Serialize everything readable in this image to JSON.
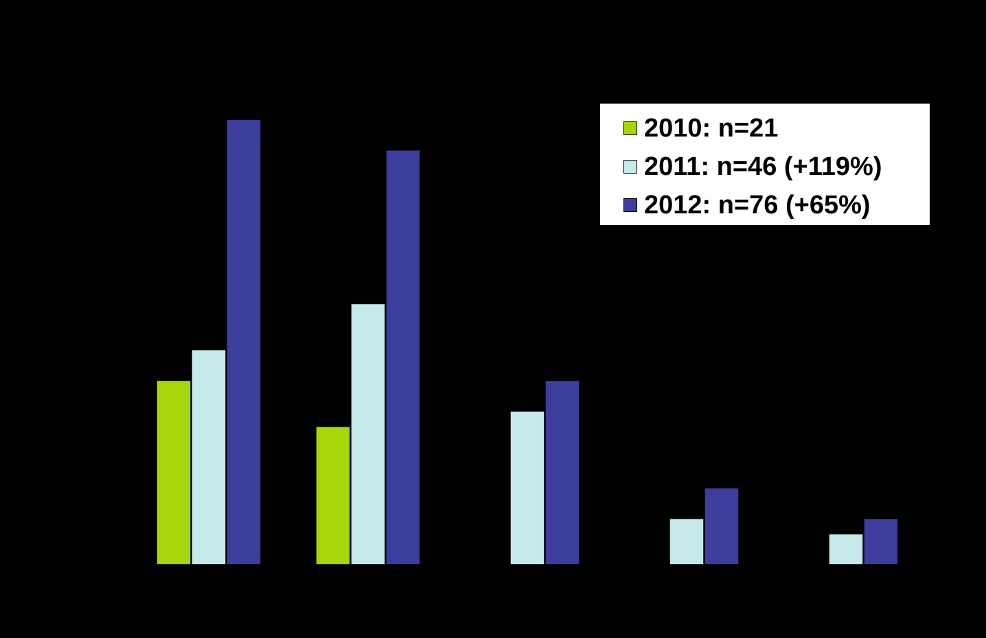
{
  "chart_data": {
    "type": "bar",
    "title": "",
    "xlabel": "",
    "ylabel": "",
    "categories": [
      "",
      "",
      "",
      "",
      ""
    ],
    "ylim": [
      0,
      29
    ],
    "grid": false,
    "legend_position": "top-right",
    "background": "#000000",
    "series": [
      {
        "name": "2010: n=21",
        "color": "#a6d609",
        "values": [
          12,
          9,
          0,
          0,
          0
        ]
      },
      {
        "name": "2011: n=46 (+119%)",
        "color": "#c6eaea",
        "values": [
          14,
          17,
          10,
          3,
          2
        ]
      },
      {
        "name": "2012: n=76 (+65%)",
        "color": "#3d3d9e",
        "values": [
          29,
          27,
          12,
          5,
          3
        ]
      }
    ]
  },
  "legend": {
    "items": [
      {
        "label": "2010: n=21",
        "color": "#a6d609",
        "swatch_icon": "square-swatch-icon"
      },
      {
        "label": "2011: n=46 (+119%)",
        "color": "#c6eaea",
        "swatch_icon": "square-swatch-icon"
      },
      {
        "label": "2012: n=76 (+65%)",
        "color": "#3d3d9e",
        "swatch_icon": "square-swatch-icon"
      }
    ]
  }
}
